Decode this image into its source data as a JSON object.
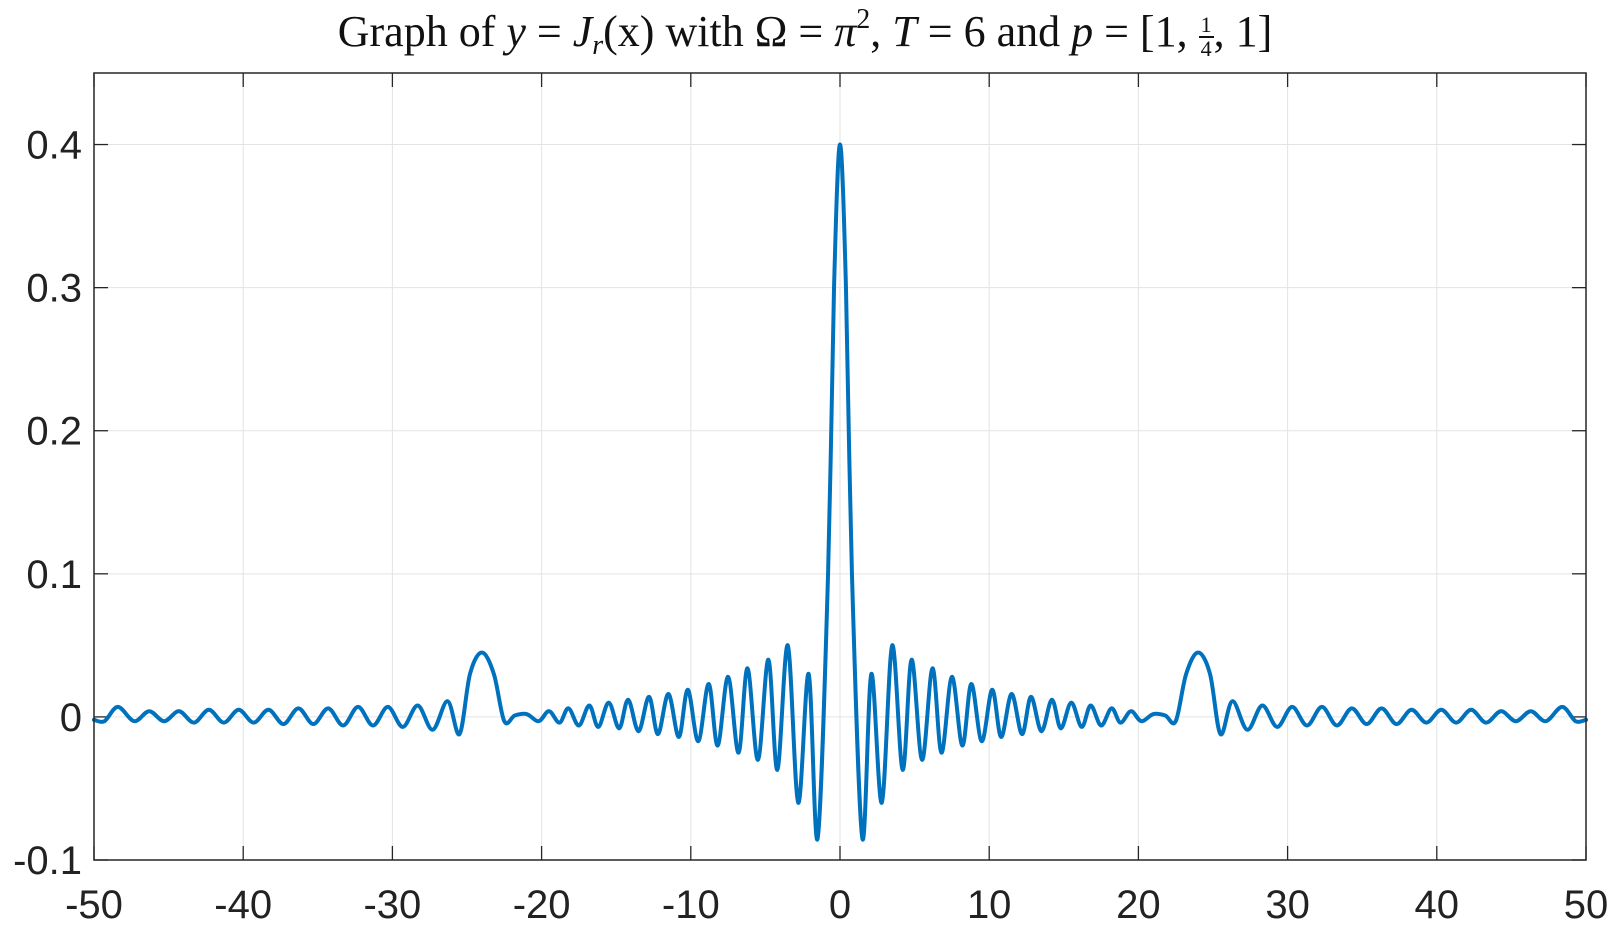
{
  "chart_data": {
    "type": "line",
    "title": {
      "t1": "Graph of ",
      "y": "y",
      "eq1": " = ",
      "J": "J",
      "r": "r",
      "arg": "(x)",
      "t2": " with ",
      "omega": "Ω",
      "eq2": " = ",
      "pi": "π",
      "exp": "2",
      "sep": ", ",
      "T": "T",
      "eq3": " = 6 and ",
      "p": "p",
      "eq4": " = [1, ",
      "num": "1",
      "den": "4",
      "tail": ", 1]"
    },
    "xlabel": "",
    "ylabel": "",
    "xlim": [
      -50,
      50
    ],
    "ylim": [
      -0.1,
      0.45
    ],
    "xticks": [
      -50,
      -40,
      -30,
      -20,
      -10,
      0,
      10,
      20,
      30,
      40,
      50
    ],
    "xtick_labels": [
      "-50",
      "-40",
      "-30",
      "-20",
      "-10",
      "0",
      "10",
      "20",
      "30",
      "40",
      "50"
    ],
    "yticks": [
      -0.1,
      0,
      0.1,
      0.2,
      0.3,
      0.4
    ],
    "ytick_labels": [
      "-0.1",
      "0",
      "0.1",
      "0.2",
      "0.3",
      "0.4"
    ],
    "grid": true,
    "legend": "none",
    "line_color": "#0072BD",
    "series": [
      {
        "x": [
          -50,
          -49.3,
          -48.4,
          -47.3,
          -46.3,
          -45.3,
          -44.3,
          -43.3,
          -42.3,
          -41.3,
          -40.3,
          -39.3,
          -38.3,
          -37.3,
          -36.3,
          -35.3,
          -34.3,
          -33.3,
          -32.3,
          -31.3,
          -30.3,
          -29.3,
          -28.3,
          -27.3,
          -26.3,
          -25.5,
          -24.8,
          -24,
          -23.2,
          -22.5,
          -21.8,
          -21,
          -20.2,
          -19.5,
          -18.8,
          -18.2,
          -17.5,
          -16.8,
          -16.2,
          -15.5,
          -14.8,
          -14.2,
          -13.5,
          -12.8,
          -12.2,
          -11.5,
          -10.8,
          -10.2,
          -9.5,
          -8.8,
          -8.2,
          -7.5,
          -6.8,
          -6.2,
          -5.5,
          -4.8,
          -4.2,
          -3.5,
          -2.8,
          -2.1,
          -1.5,
          -0.8,
          -0.4,
          0,
          0.4,
          0.8,
          1.5,
          2.1,
          2.8,
          3.5,
          4.2,
          4.8,
          5.5,
          6.2,
          6.8,
          7.5,
          8.2,
          8.8,
          9.5,
          10.2,
          10.8,
          11.5,
          12.2,
          12.8,
          13.5,
          14.2,
          14.8,
          15.5,
          16.2,
          16.8,
          17.5,
          18.2,
          18.8,
          19.5,
          20.2,
          21,
          21.8,
          22.5,
          23.2,
          24,
          24.8,
          25.5,
          26.3,
          27.3,
          28.3,
          29.3,
          30.3,
          31.3,
          32.3,
          33.3,
          34.3,
          35.3,
          36.3,
          37.3,
          38.3,
          39.3,
          40.3,
          41.3,
          42.3,
          43.3,
          44.3,
          45.3,
          46.3,
          47.3,
          48.4,
          49.3,
          50
        ],
        "y": [
          -0.002,
          -0.003,
          0.007,
          -0.003,
          0.004,
          -0.003,
          0.004,
          -0.004,
          0.005,
          -0.004,
          0.005,
          -0.004,
          0.005,
          -0.005,
          0.006,
          -0.005,
          0.006,
          -0.006,
          0.007,
          -0.006,
          0.007,
          -0.007,
          0.008,
          -0.009,
          0.011,
          -0.012,
          0.03,
          0.045,
          0.03,
          -0.003,
          0.001,
          0.002,
          -0.003,
          0.004,
          -0.004,
          0.006,
          -0.006,
          0.008,
          -0.007,
          0.01,
          -0.008,
          0.012,
          -0.01,
          0.014,
          -0.012,
          0.016,
          -0.014,
          0.019,
          -0.017,
          0.023,
          -0.02,
          0.028,
          -0.025,
          0.034,
          -0.03,
          0.04,
          -0.037,
          0.05,
          -0.06,
          0.03,
          -0.085,
          0.1,
          0.3,
          0.4,
          0.3,
          0.1,
          -0.085,
          0.03,
          -0.06,
          0.05,
          -0.037,
          0.04,
          -0.03,
          0.034,
          -0.025,
          0.028,
          -0.02,
          0.023,
          -0.017,
          0.019,
          -0.014,
          0.016,
          -0.012,
          0.014,
          -0.01,
          0.012,
          -0.008,
          0.01,
          -0.007,
          0.008,
          -0.006,
          0.006,
          -0.004,
          0.004,
          -0.003,
          0.002,
          0.001,
          -0.003,
          0.03,
          0.045,
          0.03,
          -0.012,
          0.011,
          -0.009,
          0.008,
          -0.007,
          0.007,
          -0.006,
          0.007,
          -0.006,
          0.006,
          -0.005,
          0.006,
          -0.005,
          0.005,
          -0.004,
          0.005,
          -0.004,
          0.005,
          -0.004,
          0.004,
          -0.003,
          0.004,
          -0.003,
          0.007,
          -0.003,
          -0.002
        ]
      }
    ]
  }
}
